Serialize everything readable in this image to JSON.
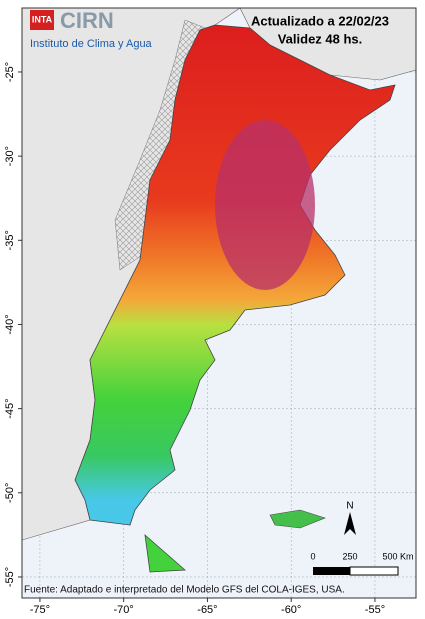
{
  "map": {
    "logo": {
      "badge": "INTA",
      "name": "CIRN",
      "subtitle": "Instituto de Clima y Agua"
    },
    "updated": "Actualizado a 22/02/23",
    "validity": "Validez 48 hs.",
    "source": "Fuente: Adaptado e interpretado del Modelo GFS del COLA-IGES, USA.",
    "north": "N",
    "scale_labels": [
      "0",
      "250",
      "500 Km"
    ],
    "xlim": [
      -76.07,
      -52.55
    ],
    "ylim": [
      -56.25,
      -21.2
    ],
    "xticks": [
      {
        "value": -75,
        "label": "-75°"
      },
      {
        "value": -70,
        "label": "-70°"
      },
      {
        "value": -65,
        "label": "-65°"
      },
      {
        "value": -60,
        "label": "-60°"
      },
      {
        "value": -55,
        "label": "-55°"
      }
    ],
    "yticks": [
      {
        "value": -25,
        "label": "-25°"
      },
      {
        "value": -30,
        "label": "-30°"
      },
      {
        "value": -35,
        "label": "-35°"
      },
      {
        "value": -40,
        "label": "-40°"
      },
      {
        "value": -45,
        "label": "-45°"
      },
      {
        "value": -50,
        "label": "-50°"
      },
      {
        "value": -55,
        "label": "-55°"
      }
    ]
  }
}
